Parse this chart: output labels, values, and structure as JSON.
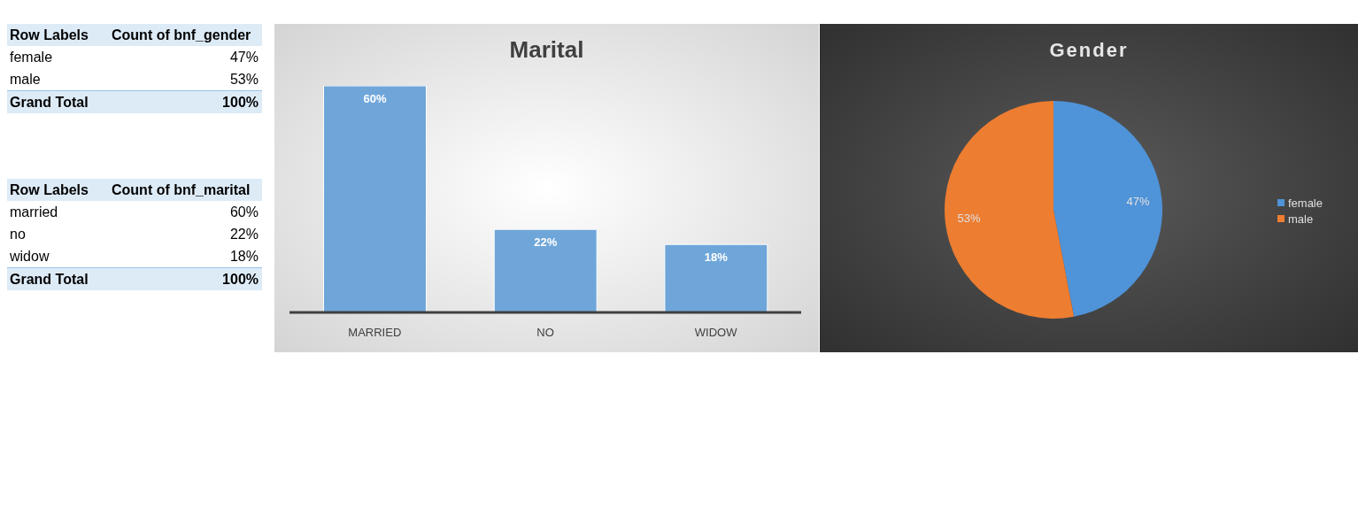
{
  "chart_data": [
    {
      "type": "other",
      "categories": [
        "female",
        "male",
        "Grand Total"
      ],
      "value_labels": [
        "47%",
        "53%",
        "100%"
      ],
      "annotations": [
        "Row Labels",
        "Count of bnf_gender"
      ]
    },
    {
      "type": "other",
      "categories": [
        "married",
        "no",
        "widow",
        "Grand Total"
      ],
      "value_labels": [
        "60%",
        "22%",
        "18%",
        "100%"
      ],
      "annotations": [
        "Row Labels",
        "Count of bnf_marital"
      ]
    },
    {
      "type": "bar",
      "title": "Marital",
      "categories": [
        "MARRIED",
        "NO",
        "WIDOW"
      ],
      "values": [
        60,
        22,
        18
      ],
      "value_labels": [
        "60%",
        "22%",
        "18%"
      ],
      "color": "#6fa6d9",
      "tick_labels": "x"
    },
    {
      "type": "pie",
      "title": "Gender",
      "categories": [
        "female",
        "male"
      ],
      "values": [
        47,
        53
      ],
      "value_labels": [
        "47%",
        "53%"
      ],
      "colors": [
        "#4f93d8",
        "#ed7d31"
      ],
      "legend": "right"
    }
  ]
}
